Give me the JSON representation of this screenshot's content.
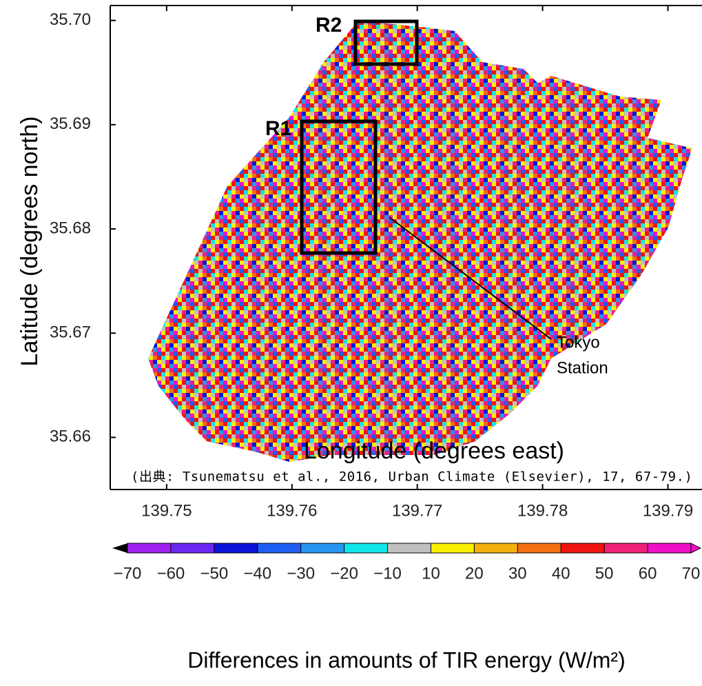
{
  "chart_data": {
    "type": "map",
    "xlabel": "Longitude (degrees east)",
    "ylabel": "Latitude  (degrees north)",
    "xlim": [
      139.7455,
      139.7925
    ],
    "ylim": [
      35.655,
      35.7013
    ],
    "xticks": [
      139.75,
      139.76,
      139.77,
      139.78,
      139.79
    ],
    "yticks": [
      {
        "value": 35.7,
        "label": "35.70"
      },
      35.69,
      35.68,
      35.67,
      35.66
    ],
    "annotations": {
      "r1": "R1",
      "r2": "R2",
      "station": [
        "Tokyo",
        "Station"
      ],
      "source": "(出典: Tsunematsu et al., 2016, Urban Climate (Elsevier), 17, 67-79.)"
    },
    "colorbar": {
      "label": "Differences in amounts of TIR energy (W/m²)",
      "ticks": [
        {
          "value": -70,
          "label": "−70"
        },
        {
          "value": -60,
          "label": "−60"
        },
        {
          "value": -50,
          "label": "−50"
        },
        {
          "value": -40,
          "label": "−40"
        },
        {
          "value": -30,
          "label": "−30"
        },
        {
          "value": -20,
          "label": "−20"
        },
        {
          "value": -10,
          "label": "−10"
        },
        10,
        20,
        30,
        40,
        50,
        60,
        70
      ],
      "colors": [
        "#a020f0",
        "#6a28f0",
        "#0a14d8",
        "#1e5ef0",
        "#2896f0",
        "#10e6ec",
        "#c0c0c0",
        "#f8f000",
        "#f4b010",
        "#f27010",
        "#ee1410",
        "#f0207a",
        "#f010c8"
      ],
      "under_color": "#000000",
      "over_color": "#f010c8"
    }
  }
}
